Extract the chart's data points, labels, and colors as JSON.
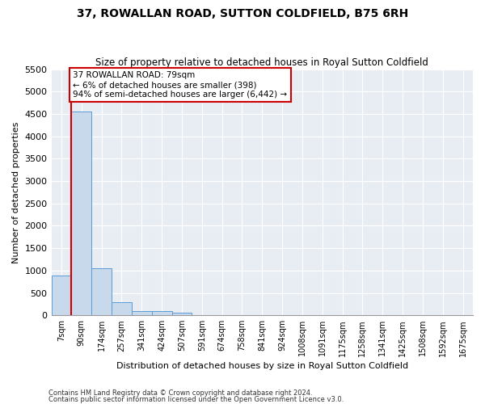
{
  "title": "37, ROWALLAN ROAD, SUTTON COLDFIELD, B75 6RH",
  "subtitle": "Size of property relative to detached houses in Royal Sutton Coldfield",
  "xlabel": "Distribution of detached houses by size in Royal Sutton Coldfield",
  "ylabel": "Number of detached properties",
  "footnote1": "Contains HM Land Registry data © Crown copyright and database right 2024.",
  "footnote2": "Contains public sector information licensed under the Open Government Licence v3.0.",
  "annotation_line1": "37 ROWALLAN ROAD: 79sqm",
  "annotation_line2": "← 6% of detached houses are smaller (398)",
  "annotation_line3": "94% of semi-detached houses are larger (6,442) →",
  "bar_color": "#c9d9ec",
  "bar_edge_color": "#5b9bd5",
  "vline_color": "#cc0000",
  "annotation_box_color": "#cc0000",
  "bg_color": "#e8edf4",
  "grid_color": "#ffffff",
  "categories": [
    "7sqm",
    "90sqm",
    "174sqm",
    "257sqm",
    "341sqm",
    "424sqm",
    "507sqm",
    "591sqm",
    "674sqm",
    "758sqm",
    "841sqm",
    "924sqm",
    "1008sqm",
    "1091sqm",
    "1175sqm",
    "1258sqm",
    "1341sqm",
    "1425sqm",
    "1508sqm",
    "1592sqm",
    "1675sqm"
  ],
  "values": [
    880,
    4560,
    1060,
    290,
    90,
    90,
    60,
    0,
    0,
    0,
    0,
    0,
    0,
    0,
    0,
    0,
    0,
    0,
    0,
    0,
    0
  ],
  "ylim": [
    0,
    5500
  ],
  "yticks": [
    0,
    500,
    1000,
    1500,
    2000,
    2500,
    3000,
    3500,
    4000,
    4500,
    5000,
    5500
  ]
}
